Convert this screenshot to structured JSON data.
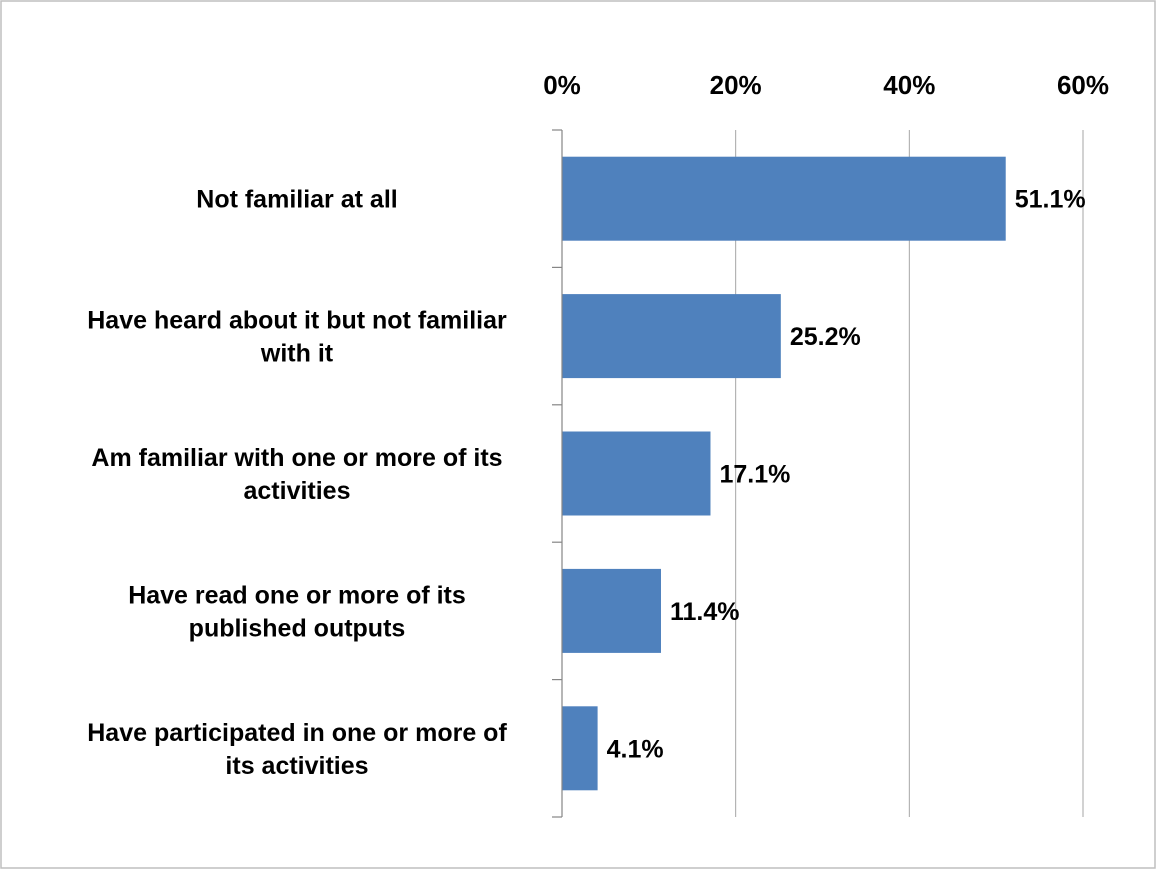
{
  "chart_data": {
    "type": "bar",
    "orientation": "horizontal",
    "categories": [
      [
        "Not familiar at all"
      ],
      [
        "Have heard about it but not familiar",
        "with it"
      ],
      [
        "Am familiar with one or more of its",
        "activities"
      ],
      [
        "Have read one or more of its",
        "published outputs"
      ],
      [
        "Have participated in one or more of",
        "its activities"
      ]
    ],
    "values": [
      51.1,
      25.2,
      17.1,
      11.4,
      4.1
    ],
    "value_labels": [
      "51.1%",
      "25.2%",
      "17.1%",
      "11.4%",
      "4.1%"
    ],
    "x_ticks": [
      0,
      20,
      40,
      60
    ],
    "x_tick_labels": [
      "0%",
      "20%",
      "40%",
      "60%"
    ],
    "xlim": [
      0,
      60
    ],
    "x_axis_position": "top",
    "grid": true,
    "legend": "none",
    "title": "",
    "xlabel": "",
    "ylabel": "",
    "colors": {
      "bar": "#4f81bd",
      "grid": "#a6a6a6",
      "axis": "#868686",
      "frame": "#bfbfbf",
      "text": "#000000"
    }
  }
}
